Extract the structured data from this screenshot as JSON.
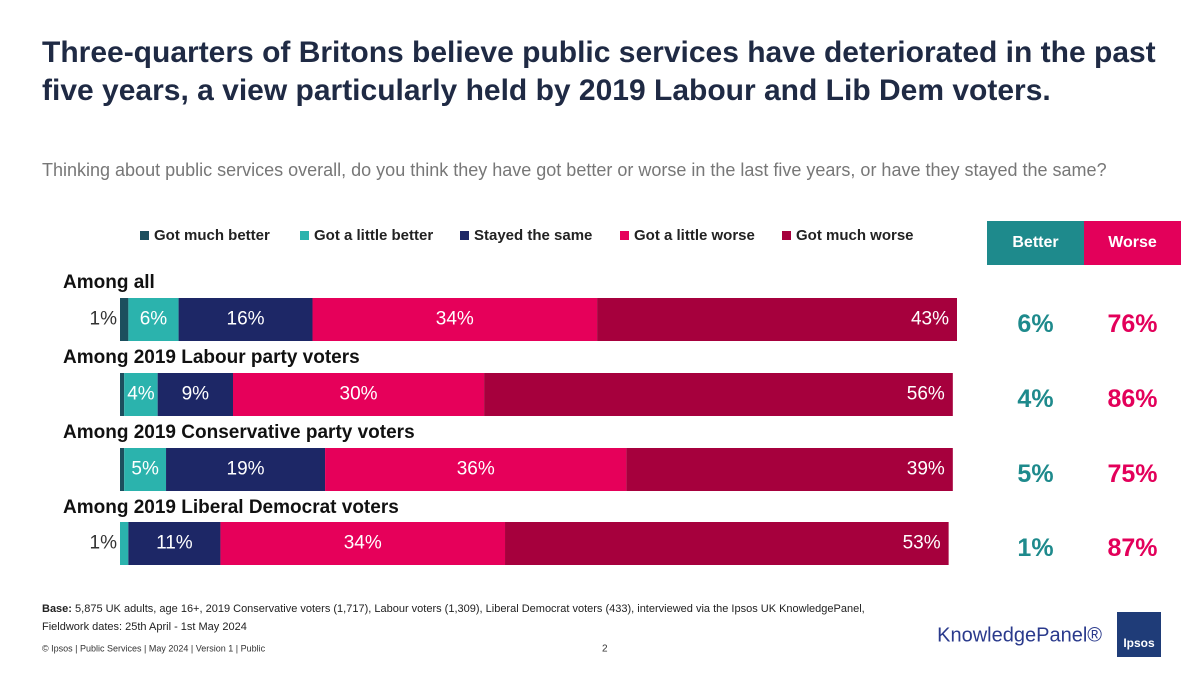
{
  "chart_data": {
    "type": "stacked_bar_horizontal",
    "title": "Three-quarters of Britons believe public services have deteriorated in the past five years, a view particularly held by 2019 Labour and Lib Dem voters.",
    "subtitle": "Thinking about public services overall, do you think they have got better or worse in the last five years, or have they stayed the same?",
    "categories": [
      "Among all",
      "Among 2019 Labour party voters",
      "Among 2019 Conservative party voters",
      "Among 2019 Liberal Democrat voters"
    ],
    "xlim": [
      0,
      100
    ],
    "series": [
      {
        "name": "Got much better",
        "color": "#1c4f5e",
        "values": [
          1,
          0.5,
          0.5,
          0
        ],
        "value_labels": [
          "1%",
          null,
          null,
          null
        ]
      },
      {
        "name": "Got a little better",
        "color": "#2bb3ad",
        "values": [
          6,
          4,
          5,
          1
        ],
        "value_labels": [
          "6%",
          "4%",
          "5%",
          "1%"
        ]
      },
      {
        "name": "Stayed the same",
        "color": "#1d2766",
        "values": [
          16,
          9,
          19,
          11
        ],
        "value_labels": [
          "16%",
          "9%",
          "19%",
          "11%"
        ]
      },
      {
        "name": "Got a little worse",
        "color": "#e6005a",
        "values": [
          34,
          30,
          36,
          34
        ],
        "value_labels": [
          "34%",
          "30%",
          "36%",
          "34%"
        ]
      },
      {
        "name": "Got much worse",
        "color": "#a6003d",
        "values": [
          43,
          56,
          39,
          53
        ],
        "value_labels": [
          "43%",
          "56%",
          "39%",
          "53%"
        ]
      }
    ],
    "summary": [
      {
        "name": "Better",
        "color": "#1e8a8c",
        "values": [
          6,
          4,
          5,
          1
        ],
        "value_labels": [
          "6%",
          "4%",
          "5%",
          "1%"
        ]
      },
      {
        "name": "Worse",
        "color": "#e3005a",
        "values": [
          76,
          86,
          75,
          87
        ],
        "value_labels": [
          "76%",
          "86%",
          "75%",
          "87%"
        ]
      }
    ]
  },
  "footnote": {
    "base_label": "Base:",
    "base_text": "5,875 UK adults, age 16+, 2019 Conservative voters (1,717), Labour voters (1,309), Liberal Democrat voters (433), interviewed via the Ipsos UK KnowledgePanel,",
    "fieldwork": "Fieldwork dates: 25th April  - 1st May 2024"
  },
  "footer": {
    "copyright": "© Ipsos | Public Services | May 2024 | Version 1 | Public",
    "page": "2",
    "brand": "KnowledgePanel®",
    "logo": "Ipsos"
  }
}
